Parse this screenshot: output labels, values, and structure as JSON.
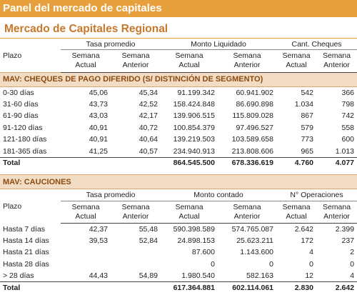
{
  "header": {
    "title": "Panel del mercado de capitales",
    "subtitle": "Mercado de Capitales Regional"
  },
  "table1": {
    "plazo_label": "Plazo",
    "groups": [
      "Tasa promedio",
      "Monto Liquidado",
      "Cant. Cheques"
    ],
    "subcols": [
      {
        "line1": "Semana",
        "line2": "Actual"
      },
      {
        "line1": "Semana",
        "line2": "Anterior"
      },
      {
        "line1": "Semana",
        "line2": "Actual"
      },
      {
        "line1": "Semana",
        "line2": "Anterior"
      },
      {
        "line1": "Semana",
        "line2": "Actual"
      },
      {
        "line1": "Semana",
        "line2": "Anterior"
      }
    ],
    "section_title": "MAV: CHEQUES DE PAGO DIFERIDO (S/ DISTINCIÓN DE SEGMENTO)",
    "rows": [
      {
        "plazo": "0-30 días",
        "c1": "45,06",
        "c2": "45,34",
        "c3": "91.199.342",
        "c4": "60.941.902",
        "c5": "542",
        "c6": "366"
      },
      {
        "plazo": "31-60 días",
        "c1": "43,73",
        "c2": "42,52",
        "c3": "158.424.848",
        "c4": "86.690.898",
        "c5": "1.034",
        "c6": "798"
      },
      {
        "plazo": "61-90 días",
        "c1": "43,03",
        "c2": "42,17",
        "c3": "139.906.515",
        "c4": "115.809.028",
        "c5": "867",
        "c6": "742"
      },
      {
        "plazo": "91-120 días",
        "c1": "40,91",
        "c2": "40,72",
        "c3": "100.854.379",
        "c4": "97.496.527",
        "c5": "579",
        "c6": "558"
      },
      {
        "plazo": "121-180 días",
        "c1": "40,91",
        "c2": "40,64",
        "c3": "139.219.503",
        "c4": "103.589.658",
        "c5": "773",
        "c6": "600"
      },
      {
        "plazo": "181-365 días",
        "c1": "41,25",
        "c2": "40,57",
        "c3": "234.940.913",
        "c4": "213.808.606",
        "c5": "965",
        "c6": "1.013"
      }
    ],
    "total": {
      "label": "Total",
      "c3": "864.545.500",
      "c4": "678.336.619",
      "c5": "4.760",
      "c6": "4.077"
    }
  },
  "table2": {
    "section_title": "MAV: CAUCIONES",
    "plazo_label": "Plazo",
    "groups": [
      "Tasa promedio",
      "Monto contado",
      "N° Operaciones"
    ],
    "subcols": [
      {
        "line1": "Semana",
        "line2": "Actual"
      },
      {
        "line1": "Semana",
        "line2": "Anterior"
      },
      {
        "line1": "Semana",
        "line2": "Actual"
      },
      {
        "line1": "Semana",
        "line2": "Anterior"
      },
      {
        "line1": "Semana",
        "line2": "Actual"
      },
      {
        "line1": "Semana",
        "line2": "Anterior"
      }
    ],
    "rows": [
      {
        "plazo": "Hasta 7 días",
        "c1": "42,37",
        "c2": "55,48",
        "c3": "590.398.589",
        "c4": "574.765.087",
        "c5": "2.642",
        "c6": "2.399"
      },
      {
        "plazo": "Hasta 14 días",
        "c1": "39,53",
        "c2": "52,84",
        "c3": "24.898.153",
        "c4": "25.623.211",
        "c5": "172",
        "c6": "237"
      },
      {
        "plazo": "Hasta 21 días",
        "c1": "",
        "c2": "",
        "c3": "87.600",
        "c4": "1.143.600",
        "c5": "4",
        "c6": "2"
      },
      {
        "plazo": "Hasta 28 días",
        "c1": "",
        "c2": "",
        "c3": "0",
        "c4": "0",
        "c5": "0",
        "c6": "0"
      },
      {
        "plazo": "> 28 días",
        "c1": "44,43",
        "c2": "54,89",
        "c3": "1.980.540",
        "c4": "582.163",
        "c5": "12",
        "c6": "4"
      }
    ],
    "total": {
      "label": "Total",
      "c3": "617.364.881",
      "c4": "602.114.061",
      "c5": "2.830",
      "c6": "2.642"
    }
  }
}
